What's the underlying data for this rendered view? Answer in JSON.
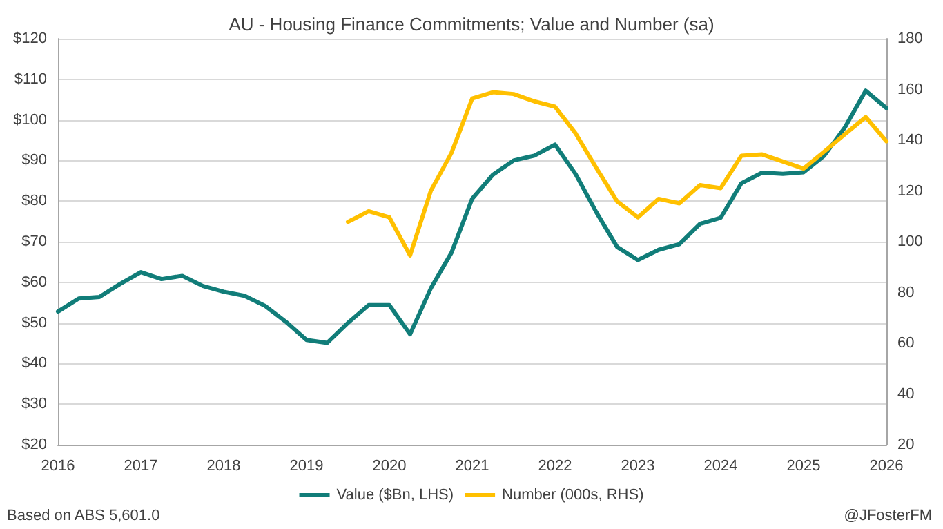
{
  "chart_data": {
    "type": "line",
    "title": "AU - Housing Finance Commitments; Value and Number (sa)",
    "x": [
      2016,
      2016.25,
      2016.5,
      2016.75,
      2017,
      2017.25,
      2017.5,
      2017.75,
      2018,
      2018.25,
      2018.5,
      2018.75,
      2019,
      2019.25,
      2019.5,
      2019.75,
      2020,
      2020.25,
      2020.5,
      2020.75,
      2021,
      2021.25,
      2021.5,
      2021.75,
      2022,
      2022.25,
      2022.5,
      2022.75,
      2023,
      2023.25,
      2023.5,
      2023.75,
      2024,
      2024.25,
      2024.5,
      2024.75,
      2025,
      2025.25,
      2025.5,
      2025.75,
      2026
    ],
    "series": [
      {
        "name": "Value ($Bn, LHS)",
        "color": "#117d79",
        "values": [
          52.8,
          56.0,
          56.4,
          59.6,
          62.5,
          60.8,
          61.6,
          59.1,
          57.7,
          56.7,
          54.2,
          50.3,
          45.8,
          45.1,
          50.0,
          54.4,
          54.4,
          47.2,
          58.5,
          67.3,
          80.6,
          86.5,
          90.0,
          91.2,
          93.9,
          86.6,
          77.2,
          68.7,
          65.5,
          68.0,
          69.4,
          74.4,
          75.9,
          84.4,
          87.0,
          86.7,
          87.1,
          91.2,
          98.2,
          107.2,
          102.9
        ]
      },
      {
        "name": "Number (000s, RHS)",
        "color": "#ffc000",
        "axis": "y2",
        "x": [
          2019.5,
          2019.75,
          2020,
          2020.25,
          2020.5,
          2020.75,
          2021,
          2021.25,
          2021.5,
          2021.75,
          2022,
          2022.25,
          2022.5,
          2022.75,
          2023,
          2023.25,
          2023.5,
          2023.75,
          2024,
          2024.25,
          2024.5,
          2024.75,
          2025,
          2025.25,
          2025.5,
          2025.75,
          2026
        ],
        "values": [
          107.8,
          112.0,
          109.6,
          94.6,
          120.0,
          135.0,
          156.4,
          158.9,
          158.2,
          155.3,
          153.2,
          142.6,
          129.0,
          115.9,
          109.6,
          116.9,
          115.1,
          122.3,
          121.1,
          133.9,
          134.4,
          131.6,
          128.8,
          135.5,
          142.4,
          149.1,
          139.6
        ]
      }
    ],
    "xlim": [
      2016,
      2026
    ],
    "xticks": [
      2016,
      2017,
      2018,
      2019,
      2020,
      2021,
      2022,
      2023,
      2024,
      2025,
      2026
    ],
    "ylim": [
      20,
      120
    ],
    "yticks": [
      {
        "value": 20,
        "label": "$20"
      },
      {
        "value": 30,
        "label": "$30"
      },
      {
        "value": 40,
        "label": "$40"
      },
      {
        "value": 50,
        "label": "$50"
      },
      {
        "value": 60,
        "label": "$60"
      },
      {
        "value": 70,
        "label": "$70"
      },
      {
        "value": 80,
        "label": "$80"
      },
      {
        "value": 90,
        "label": "$90"
      },
      {
        "value": 100,
        "label": "$100"
      },
      {
        "value": 110,
        "label": "$110"
      },
      {
        "value": 120,
        "label": "$120"
      }
    ],
    "y2lim": [
      20,
      180
    ],
    "y2ticks": [
      20,
      40,
      60,
      80,
      100,
      120,
      140,
      160,
      180
    ],
    "grid": "y",
    "legend": "bottom",
    "marker": "none",
    "line_style": "solid",
    "annotations": [
      "Based on ABS 5,601.0",
      "@JFosterFM"
    ]
  }
}
